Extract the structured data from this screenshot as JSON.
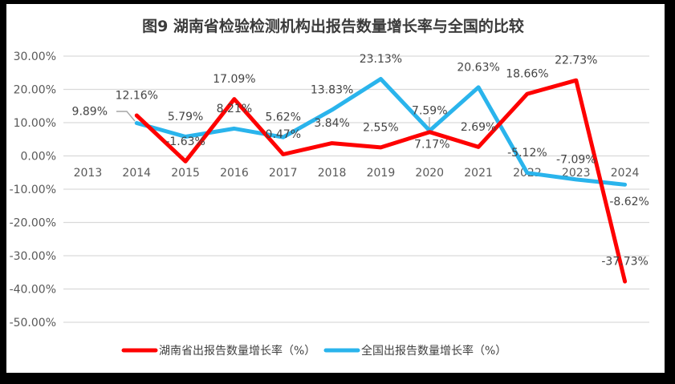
{
  "title": "图9 湖南省检验检测机构出报告数量增长率与全国的比较",
  "colors": {
    "hunan_red": "#FE0000",
    "national_blue": "#2AB4EC",
    "gridline": "#D9D9D9",
    "axis_text": "#595959",
    "data_label_text": "#444444",
    "leader_gray": "#A6A6A6",
    "frame": "#000000",
    "chart_background": "#FFFFFF"
  },
  "chart_data": {
    "type": "line",
    "categories": [
      "2013",
      "2014",
      "2015",
      "2016",
      "2017",
      "2018",
      "2019",
      "2020",
      "2021",
      "2022",
      "2023",
      "2024"
    ],
    "series": [
      {
        "name": "湖南省出报告数量增长率（%）",
        "color": "#FE0000",
        "values": [
          null,
          12.16,
          -1.63,
          17.09,
          0.47,
          3.84,
          2.55,
          7.17,
          2.69,
          18.66,
          22.73,
          -37.73
        ],
        "labels": [
          "",
          "12.16%",
          "-1.63%",
          "17.09%",
          "0.47%",
          "3.84%",
          "2.55%",
          "7.17%",
          "2.69%",
          "18.66%",
          "22.73%",
          "-37.73%"
        ]
      },
      {
        "name": "全国出报告数量增长率（%）",
        "color": "#2AB4EC",
        "values": [
          null,
          9.89,
          5.79,
          8.21,
          5.62,
          13.83,
          23.13,
          7.59,
          20.63,
          -5.12,
          -7.09,
          -8.62
        ],
        "labels": [
          "",
          "9.89%",
          "5.79%",
          "8.21%",
          "5.62%",
          "13.83%",
          "23.13%",
          "7.59%",
          "20.63%",
          "-5.12%",
          "-7.09%",
          "-8.62%"
        ]
      }
    ],
    "y_axis": {
      "min": -50,
      "max": 30,
      "step": 10,
      "ticks": [
        "30.00%",
        "20.00%",
        "10.00%",
        "0.00%",
        "-10.00%",
        "-20.00%",
        "-30.00%",
        "-40.00%",
        "-50.00%"
      ]
    },
    "grid": true,
    "legend_position": "bottom"
  }
}
